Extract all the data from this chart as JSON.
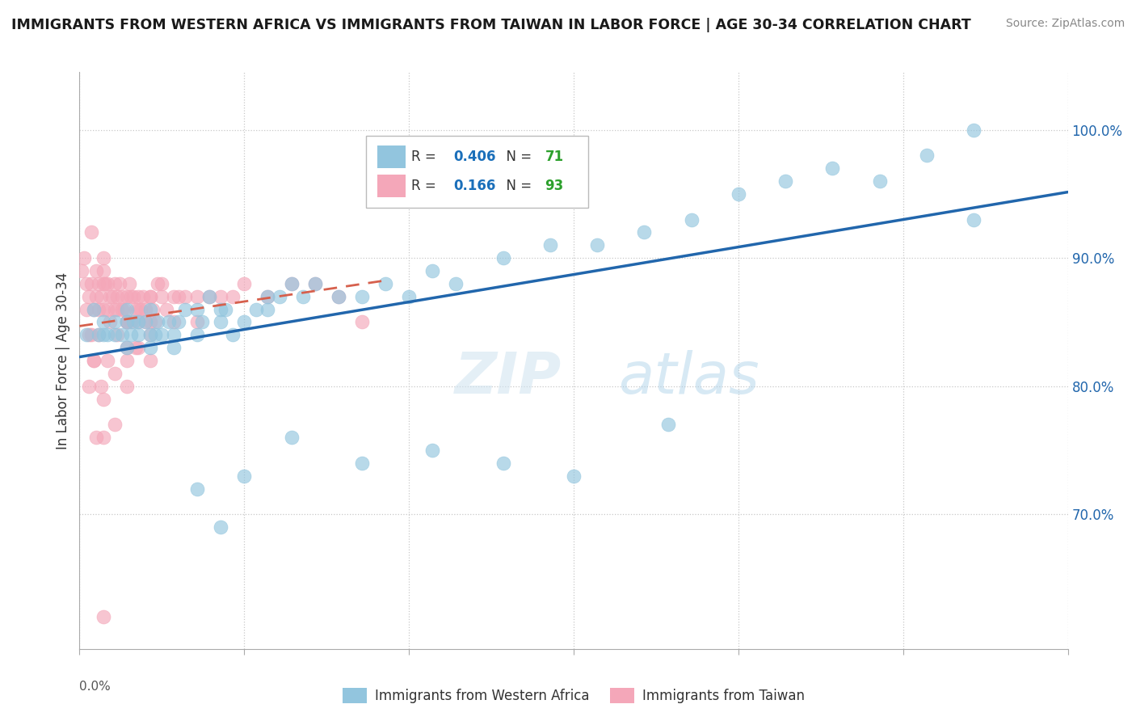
{
  "title": "IMMIGRANTS FROM WESTERN AFRICA VS IMMIGRANTS FROM TAIWAN IN LABOR FORCE | AGE 30-34 CORRELATION CHART",
  "source": "Source: ZipAtlas.com",
  "ylabel": "In Labor Force | Age 30-34",
  "blue_label": "Immigrants from Western Africa",
  "pink_label": "Immigrants from Taiwan",
  "blue_R": 0.406,
  "blue_N": 71,
  "pink_R": 0.166,
  "pink_N": 93,
  "blue_color": "#92c5de",
  "pink_color": "#f4a7b9",
  "blue_line_color": "#2166ac",
  "pink_line_color": "#d6604d",
  "background_color": "#ffffff",
  "grid_color": "#c8c8c8",
  "legend_R_color": "#1a6fba",
  "legend_N_color": "#2ca02c",
  "xlim": [
    0.0,
    0.042
  ],
  "ylim": [
    0.595,
    1.045
  ],
  "y_ticks": [
    0.7,
    0.8,
    0.9,
    1.0
  ],
  "y_tick_labels": [
    "70.0%",
    "80.0%",
    "90.0%",
    "100.0%"
  ],
  "x_ticks": [
    0.0,
    0.007,
    0.014,
    0.021,
    0.028,
    0.035,
    0.042
  ],
  "blue_x": [
    0.0003,
    0.0006,
    0.0008,
    0.001,
    0.001,
    0.0012,
    0.0015,
    0.0015,
    0.0018,
    0.002,
    0.002,
    0.002,
    0.0022,
    0.0023,
    0.0025,
    0.0025,
    0.0028,
    0.003,
    0.003,
    0.003,
    0.0032,
    0.0033,
    0.0035,
    0.0038,
    0.004,
    0.004,
    0.0042,
    0.0045,
    0.005,
    0.005,
    0.0052,
    0.0055,
    0.006,
    0.006,
    0.0062,
    0.0065,
    0.007,
    0.0075,
    0.008,
    0.008,
    0.0085,
    0.009,
    0.0095,
    0.01,
    0.011,
    0.012,
    0.013,
    0.014,
    0.015,
    0.016,
    0.018,
    0.02,
    0.022,
    0.024,
    0.026,
    0.028,
    0.03,
    0.032,
    0.034,
    0.036,
    0.038,
    0.038,
    0.009,
    0.007,
    0.005,
    0.012,
    0.015,
    0.018,
    0.021,
    0.025,
    0.006
  ],
  "blue_y": [
    0.84,
    0.86,
    0.84,
    0.85,
    0.84,
    0.84,
    0.84,
    0.85,
    0.84,
    0.85,
    0.83,
    0.86,
    0.84,
    0.85,
    0.85,
    0.84,
    0.85,
    0.84,
    0.83,
    0.86,
    0.84,
    0.85,
    0.84,
    0.85,
    0.84,
    0.83,
    0.85,
    0.86,
    0.86,
    0.84,
    0.85,
    0.87,
    0.86,
    0.85,
    0.86,
    0.84,
    0.85,
    0.86,
    0.86,
    0.87,
    0.87,
    0.88,
    0.87,
    0.88,
    0.87,
    0.87,
    0.88,
    0.87,
    0.89,
    0.88,
    0.9,
    0.91,
    0.91,
    0.92,
    0.93,
    0.95,
    0.96,
    0.97,
    0.96,
    0.98,
    1.0,
    0.93,
    0.76,
    0.73,
    0.72,
    0.74,
    0.75,
    0.74,
    0.73,
    0.77,
    0.69
  ],
  "pink_x": [
    0.0001,
    0.0002,
    0.0003,
    0.0003,
    0.0004,
    0.0005,
    0.0005,
    0.0006,
    0.0007,
    0.0007,
    0.0008,
    0.0008,
    0.0009,
    0.001,
    0.001,
    0.001,
    0.0011,
    0.0012,
    0.0012,
    0.0013,
    0.0013,
    0.0014,
    0.0015,
    0.0015,
    0.0016,
    0.0016,
    0.0017,
    0.0018,
    0.0018,
    0.0019,
    0.002,
    0.002,
    0.0021,
    0.0022,
    0.0022,
    0.0023,
    0.0024,
    0.0025,
    0.0025,
    0.0026,
    0.0027,
    0.0028,
    0.003,
    0.003,
    0.0031,
    0.0033,
    0.0035,
    0.0037,
    0.004,
    0.004,
    0.0042,
    0.0045,
    0.005,
    0.005,
    0.0055,
    0.006,
    0.0065,
    0.007,
    0.008,
    0.009,
    0.01,
    0.011,
    0.012,
    0.0004,
    0.0006,
    0.001,
    0.0015,
    0.002,
    0.0025,
    0.003,
    0.0035,
    0.001,
    0.0015,
    0.002,
    0.0025,
    0.003,
    0.0005,
    0.0007,
    0.0009,
    0.0012,
    0.0016,
    0.002,
    0.0024,
    0.0028,
    0.0032,
    0.003,
    0.002,
    0.001,
    0.0008,
    0.0006,
    0.0004,
    0.001,
    0.002
  ],
  "pink_y": [
    0.89,
    0.9,
    0.86,
    0.88,
    0.87,
    0.88,
    0.92,
    0.86,
    0.87,
    0.89,
    0.86,
    0.88,
    0.87,
    0.88,
    0.86,
    0.89,
    0.88,
    0.88,
    0.86,
    0.87,
    0.85,
    0.87,
    0.86,
    0.88,
    0.87,
    0.86,
    0.88,
    0.86,
    0.87,
    0.86,
    0.87,
    0.85,
    0.88,
    0.87,
    0.85,
    0.87,
    0.86,
    0.87,
    0.85,
    0.86,
    0.87,
    0.85,
    0.87,
    0.85,
    0.86,
    0.88,
    0.87,
    0.86,
    0.87,
    0.85,
    0.87,
    0.87,
    0.87,
    0.85,
    0.87,
    0.87,
    0.87,
    0.88,
    0.87,
    0.88,
    0.88,
    0.87,
    0.85,
    0.84,
    0.82,
    0.79,
    0.77,
    0.85,
    0.86,
    0.87,
    0.88,
    0.9,
    0.81,
    0.82,
    0.83,
    0.84,
    0.84,
    0.76,
    0.8,
    0.82,
    0.84,
    0.85,
    0.83,
    0.86,
    0.85,
    0.82,
    0.8,
    0.62,
    0.84,
    0.82,
    0.8,
    0.76,
    0.83
  ]
}
